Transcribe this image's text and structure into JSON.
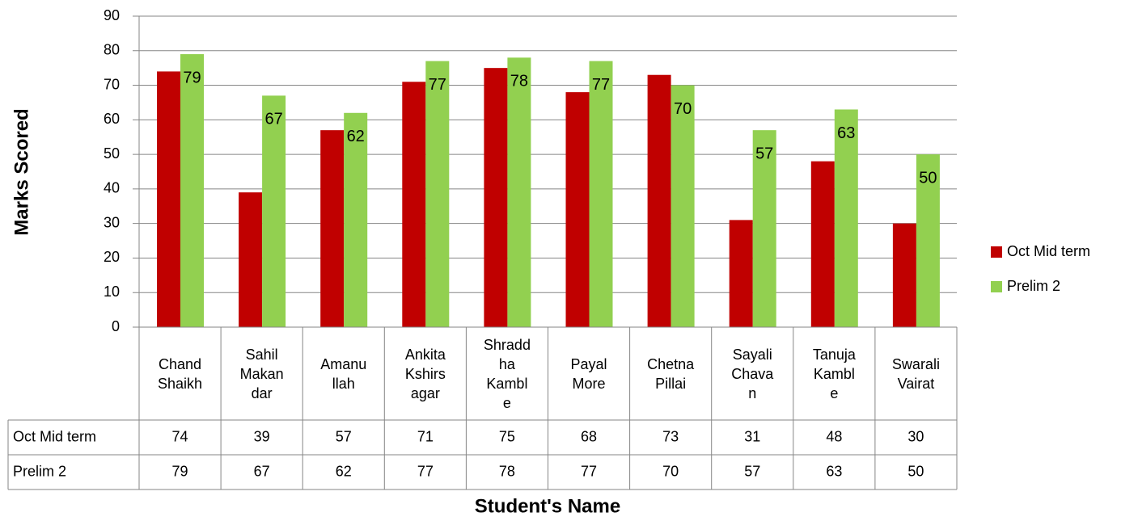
{
  "chart_data": {
    "type": "bar",
    "x_label": "Student's Name",
    "y_label": "Marks Scored",
    "categories": [
      "Chand Shaikh",
      "Sahil Makandar",
      "Amanullah",
      "Ankita Kshirsagar",
      "Shraddha Kamble",
      "Payal More",
      "Chetna Pillai",
      "Sayali Chavan",
      "Tanuja Kamble",
      "Swarali Vairat"
    ],
    "series": [
      {
        "name": "Oct Mid term",
        "color": "#c00000",
        "values": [
          74,
          39,
          57,
          71,
          75,
          68,
          73,
          31,
          48,
          30
        ]
      },
      {
        "name": "Prelim 2",
        "color": "#92d050",
        "values": [
          79,
          67,
          62,
          77,
          78,
          77,
          70,
          57,
          63,
          50
        ],
        "data_labels": true
      }
    ],
    "ylim": [
      0,
      90
    ],
    "yticks": [
      0,
      10,
      20,
      30,
      40,
      50,
      60,
      70,
      80,
      90
    ],
    "grid": true,
    "legend": "right",
    "data_table": true
  }
}
